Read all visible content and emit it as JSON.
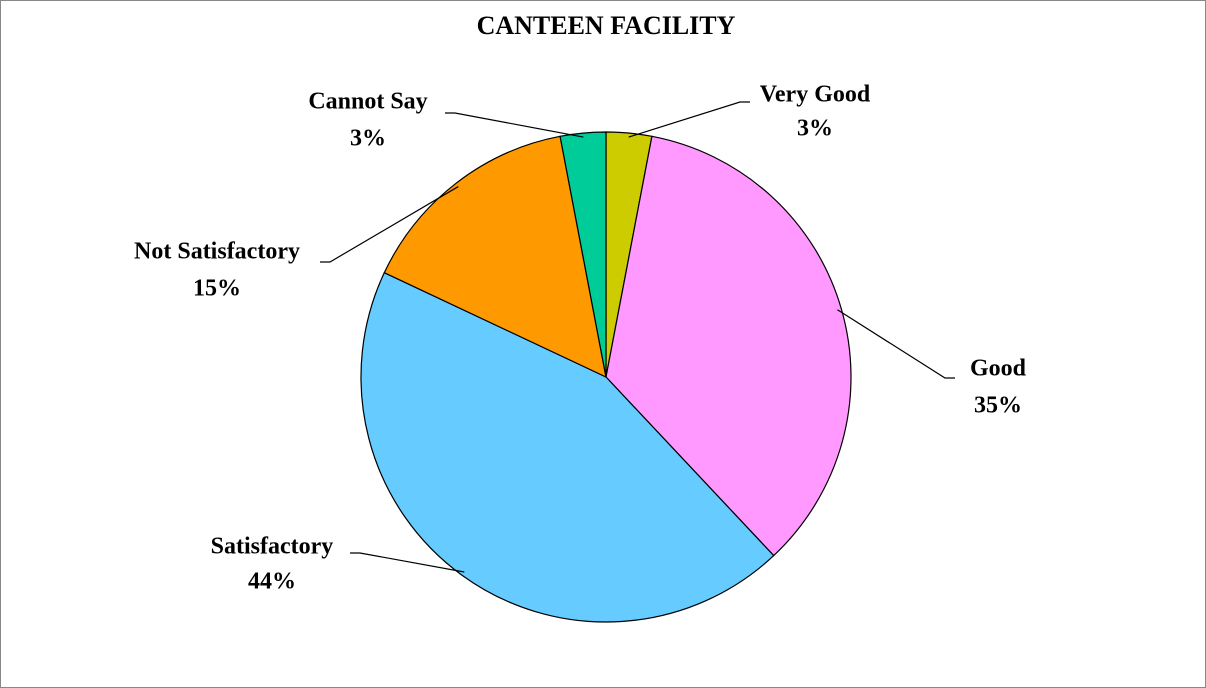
{
  "chart_data": {
    "type": "pie",
    "title": "CANTEEN FACILITY",
    "categories": [
      "Very Good",
      "Good",
      "Satisfactory",
      "Not Satisfactory",
      "Cannot Say"
    ],
    "values": [
      3,
      35,
      44,
      15,
      3
    ],
    "value_labels": [
      "3%",
      "35%",
      "44%",
      "15%",
      "3%"
    ],
    "colors": [
      "#cccc00",
      "#ff99ff",
      "#66ccff",
      "#ff9900",
      "#00cc99"
    ]
  }
}
